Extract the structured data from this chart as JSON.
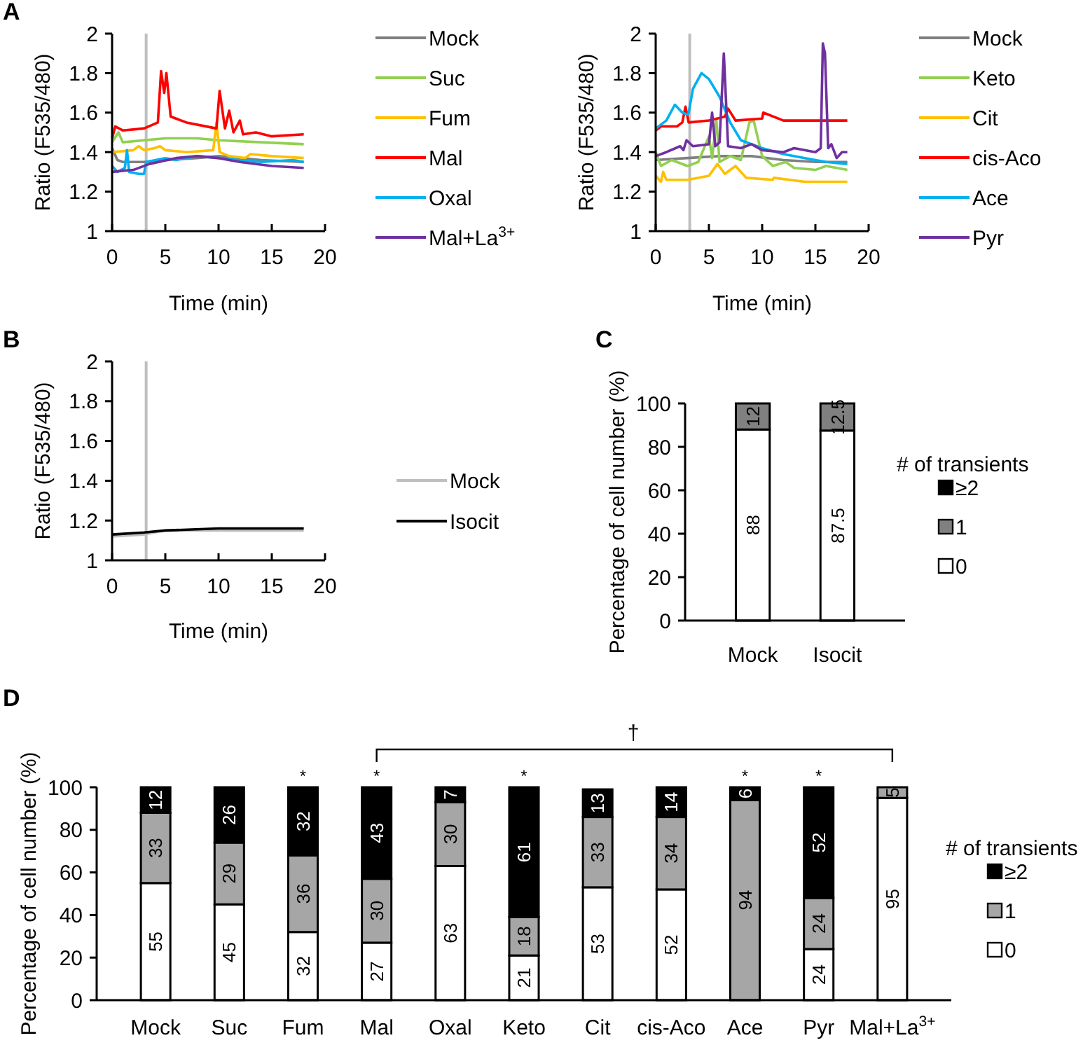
{
  "chart_data": [
    {
      "type": "line",
      "annotations": [
        "A"
      ],
      "xlabel": "Time (min)",
      "ylabel": "Ratio (F535/480)",
      "xlim": [
        0,
        20
      ],
      "xticks": [
        0,
        5,
        10,
        15,
        20
      ],
      "ylim": [
        1,
        2
      ],
      "yticks": [
        1,
        1.2,
        1.4,
        1.6,
        1.8,
        2
      ],
      "legend": "right",
      "ref_lines": [
        {
          "axis": "x",
          "value": 3.2,
          "color": "#bfbfbf"
        }
      ],
      "series": [
        {
          "name": "Mock",
          "color": "#808080",
          "x": [
            0,
            0.5,
            1,
            3,
            5,
            8,
            10,
            12,
            14,
            18
          ],
          "values": [
            1.42,
            1.36,
            1.35,
            1.35,
            1.36,
            1.37,
            1.38,
            1.37,
            1.36,
            1.35
          ]
        },
        {
          "name": "Suc",
          "color": "#92d050",
          "x": [
            0,
            0.6,
            1,
            3,
            5,
            8,
            10,
            14,
            18
          ],
          "values": [
            1.45,
            1.5,
            1.45,
            1.46,
            1.47,
            1.47,
            1.46,
            1.45,
            1.44
          ]
        },
        {
          "name": "Fum",
          "color": "#ffc000",
          "x": [
            0,
            2,
            2.5,
            3,
            4,
            4.5,
            5,
            7,
            9.5,
            9.8,
            10.1,
            11,
            12.5,
            13,
            15,
            18
          ],
          "values": [
            1.4,
            1.41,
            1.43,
            1.41,
            1.42,
            1.43,
            1.41,
            1.4,
            1.41,
            1.55,
            1.4,
            1.38,
            1.37,
            1.39,
            1.38,
            1.37
          ]
        },
        {
          "name": "Mal",
          "color": "#ff0000",
          "x": [
            0,
            0.3,
            1,
            3,
            4.3,
            4.6,
            4.9,
            5.1,
            5.5,
            7,
            9.8,
            10.1,
            10.6,
            11,
            11.4,
            12,
            12.3,
            13.5,
            15,
            18
          ],
          "values": [
            1.47,
            1.53,
            1.51,
            1.52,
            1.55,
            1.81,
            1.7,
            1.8,
            1.58,
            1.55,
            1.52,
            1.71,
            1.52,
            1.61,
            1.5,
            1.56,
            1.49,
            1.5,
            1.48,
            1.49
          ]
        },
        {
          "name": "Oxal",
          "color": "#00b0f0",
          "x": [
            0,
            0.5,
            1.2,
            1.4,
            1.6,
            2.5,
            3,
            3.2,
            5,
            6,
            8,
            10,
            12,
            14,
            17,
            18
          ],
          "values": [
            1.33,
            1.3,
            1.32,
            1.41,
            1.3,
            1.29,
            1.29,
            1.35,
            1.37,
            1.36,
            1.38,
            1.37,
            1.36,
            1.35,
            1.36,
            1.35
          ]
        },
        {
          "name": "Mal+La$^{3+}$",
          "color": "#7030a0",
          "x": [
            0,
            2,
            3.5,
            6,
            8,
            10,
            12,
            15,
            18
          ],
          "values": [
            1.3,
            1.31,
            1.34,
            1.37,
            1.38,
            1.37,
            1.35,
            1.33,
            1.32
          ]
        }
      ]
    },
    {
      "type": "line",
      "xlabel": "Time (min)",
      "ylabel": "Ratio (F535/480)",
      "xlim": [
        0,
        20
      ],
      "xticks": [
        0,
        5,
        10,
        15,
        20
      ],
      "ylim": [
        1,
        2
      ],
      "yticks": [
        1,
        1.2,
        1.4,
        1.6,
        1.8,
        2
      ],
      "legend": "right",
      "ref_lines": [
        {
          "axis": "x",
          "value": 3.2,
          "color": "#bfbfbf"
        }
      ],
      "series": [
        {
          "name": "Mock",
          "color": "#808080",
          "x": [
            0,
            3,
            6,
            9,
            12,
            15,
            18
          ],
          "values": [
            1.36,
            1.37,
            1.38,
            1.38,
            1.36,
            1.35,
            1.35
          ]
        },
        {
          "name": "Keto",
          "color": "#92d050",
          "x": [
            0,
            0.5,
            1.5,
            3,
            4,
            5,
            5.3,
            5.7,
            6,
            7,
            8,
            8.8,
            9.2,
            10,
            11,
            12.2,
            13,
            15,
            16,
            18
          ],
          "values": [
            1.4,
            1.33,
            1.36,
            1.33,
            1.35,
            1.48,
            1.37,
            1.56,
            1.35,
            1.38,
            1.36,
            1.55,
            1.56,
            1.38,
            1.33,
            1.35,
            1.32,
            1.31,
            1.33,
            1.31
          ]
        },
        {
          "name": "Cit",
          "color": "#ffc000",
          "x": [
            0,
            0.5,
            0.7,
            1,
            3,
            5,
            5.8,
            6.5,
            7.5,
            8.5,
            11,
            11.1,
            14,
            18
          ],
          "values": [
            1.28,
            1.25,
            1.3,
            1.26,
            1.26,
            1.28,
            1.34,
            1.29,
            1.33,
            1.27,
            1.26,
            1.27,
            1.25,
            1.25
          ]
        },
        {
          "name": "cis-Aco",
          "color": "#ff0000",
          "x": [
            0,
            0.5,
            2,
            2.5,
            2.8,
            3.1,
            5,
            6.5,
            6.8,
            7.5,
            10,
            10.1,
            12,
            18
          ],
          "values": [
            1.51,
            1.53,
            1.53,
            1.55,
            1.63,
            1.55,
            1.56,
            1.58,
            1.62,
            1.56,
            1.57,
            1.6,
            1.56,
            1.56
          ]
        },
        {
          "name": "Ace",
          "color": "#00b0f0",
          "x": [
            0,
            1,
            1.8,
            2.5,
            3,
            3.1,
            3.5,
            4.3,
            5,
            6,
            7,
            8,
            10,
            12,
            14,
            16,
            18
          ],
          "values": [
            1.52,
            1.56,
            1.64,
            1.6,
            1.59,
            1.6,
            1.72,
            1.8,
            1.77,
            1.68,
            1.55,
            1.46,
            1.42,
            1.39,
            1.37,
            1.35,
            1.34
          ]
        },
        {
          "name": "Pyr",
          "color": "#7030a0",
          "x": [
            0,
            1,
            2.3,
            2.6,
            2.9,
            3.5,
            5,
            5.3,
            5.6,
            6,
            6.4,
            6.8,
            8,
            9,
            10,
            12,
            13,
            15,
            15.5,
            15.7,
            15.9,
            16.2,
            16.5,
            17,
            17.5,
            18
          ],
          "values": [
            1.38,
            1.4,
            1.43,
            1.41,
            1.46,
            1.43,
            1.44,
            1.6,
            1.43,
            1.45,
            1.9,
            1.43,
            1.42,
            1.44,
            1.41,
            1.4,
            1.42,
            1.4,
            1.42,
            1.95,
            1.9,
            1.42,
            1.44,
            1.37,
            1.4,
            1.4
          ]
        }
      ]
    },
    {
      "type": "line",
      "annotations": [
        "B"
      ],
      "xlabel": "Time (min)",
      "ylabel": "Ratio (F535/480)",
      "xlim": [
        0,
        20
      ],
      "xticks": [
        0,
        5,
        10,
        15,
        20
      ],
      "ylim": [
        1,
        2
      ],
      "yticks": [
        1,
        1.2,
        1.4,
        1.6,
        1.8,
        2
      ],
      "legend": "right",
      "ref_lines": [
        {
          "axis": "x",
          "value": 3.2,
          "color": "#bfbfbf"
        }
      ],
      "series": [
        {
          "name": "Mock",
          "color": "#bfbfbf",
          "x": [
            0,
            3,
            5,
            10,
            18
          ],
          "values": [
            1.12,
            1.13,
            1.15,
            1.15,
            1.15
          ]
        },
        {
          "name": "Isocit",
          "color": "#000000",
          "x": [
            0,
            3,
            5,
            10,
            18
          ],
          "values": [
            1.13,
            1.14,
            1.15,
            1.16,
            1.16
          ]
        }
      ]
    },
    {
      "type": "bar",
      "annotations": [
        "C"
      ],
      "ylabel": "Percentage of cell number (%)",
      "categories": [
        "Mock",
        "Isocit"
      ],
      "stacked": true,
      "ylim": [
        0,
        100
      ],
      "yticks": [
        0,
        20,
        40,
        60,
        80,
        100
      ],
      "legend": "right",
      "legend_title": "# of transients",
      "series": [
        {
          "name": "0",
          "color": "#ffffff",
          "values": [
            88,
            87.5
          ],
          "value_labels": [
            "88",
            "87.5"
          ]
        },
        {
          "name": "1",
          "color": "#808080",
          "values": [
            12,
            12.5
          ],
          "value_labels": [
            "12",
            "12.5"
          ]
        },
        {
          "name": "≥2",
          "color": "#000000",
          "values": [
            0,
            0
          ],
          "value_labels": [
            null,
            null
          ]
        }
      ]
    },
    {
      "type": "bar",
      "annotations": [
        "D",
        "†",
        {
          "text": "*",
          "x": "Fum",
          "y": 100
        },
        {
          "text": "*",
          "x": "Mal",
          "y": 100
        },
        {
          "text": "*",
          "x": "Keto",
          "y": 100
        },
        {
          "text": "*",
          "x": "Ace",
          "y": 100
        },
        {
          "text": "*",
          "x": "Pyr",
          "y": 100
        }
      ],
      "ylabel": "Percentage of cell number (%)",
      "categories": [
        "Mock",
        "Suc",
        "Fum",
        "Mal",
        "Oxal",
        "Keto",
        "Cit",
        "cis-Aco",
        "Ace",
        "Pyr",
        "Mal+La$^{3+}$"
      ],
      "stacked": true,
      "ylim": [
        0,
        100
      ],
      "yticks": [
        0,
        20,
        40,
        60,
        80,
        100
      ],
      "legend": "right",
      "legend_title": "# of transients",
      "series": [
        {
          "name": "0",
          "color": "#ffffff",
          "values": [
            55,
            45,
            32,
            27,
            63,
            21,
            53,
            52,
            0,
            24,
            95
          ],
          "value_labels": [
            "55",
            "45",
            "32",
            "27",
            "63",
            "21",
            "53",
            "52",
            null,
            "24",
            "95"
          ]
        },
        {
          "name": "1",
          "color": "#a6a6a6",
          "values": [
            33,
            29,
            36,
            30,
            30,
            18,
            33,
            34,
            94,
            24,
            5
          ],
          "value_labels": [
            "33",
            "29",
            "36",
            "30",
            "30",
            "18",
            "33",
            "34",
            "94",
            "24",
            "5"
          ]
        },
        {
          "name": "≥2",
          "color": "#000000",
          "values": [
            12,
            26,
            32,
            43,
            7,
            61,
            13,
            14,
            6,
            52,
            0
          ],
          "value_labels": [
            "12",
            "26",
            "32",
            "43",
            "7",
            "61",
            "13",
            "14",
            "6",
            "52",
            null
          ]
        }
      ]
    }
  ]
}
